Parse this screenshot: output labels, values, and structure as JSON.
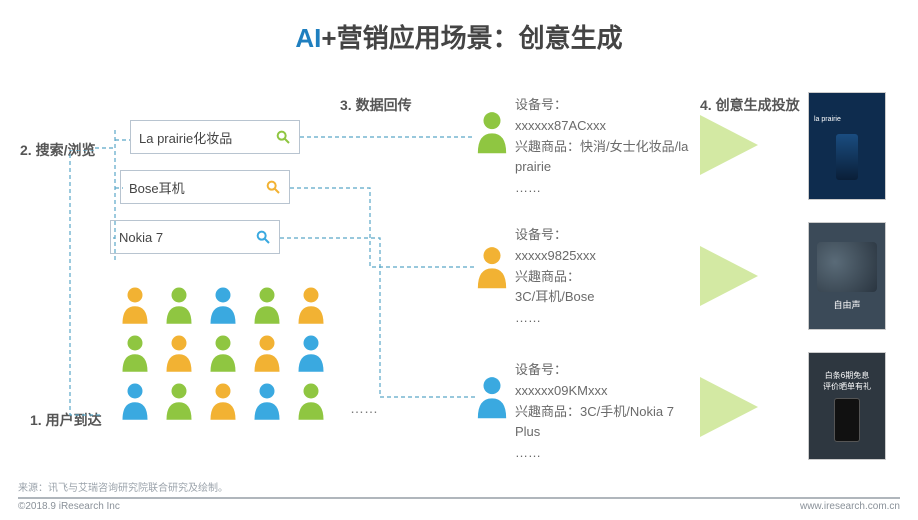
{
  "title": {
    "text": "AI+营销应用场景：创意生成",
    "color_ai": "#1f7fbf",
    "color_rest": "#444444",
    "fontsize": 26
  },
  "stages": {
    "s1": "1. 用户到达",
    "s2": "2. 搜索/浏览",
    "s3": "3. 数据回传",
    "s4": "4. 创意生成投放"
  },
  "search": {
    "items": [
      "La prairie化妆品",
      "Bose耳机",
      "Nokia 7"
    ],
    "icon_colors": [
      "#8fc641",
      "#f2b233",
      "#3aa9e0"
    ],
    "border_color": "#b8c4d0"
  },
  "people_grid": {
    "rows": 3,
    "cols": 5,
    "colors": [
      [
        "#f2b233",
        "#8fc641",
        "#3aa9e0",
        "#8fc641",
        "#f2b233"
      ],
      [
        "#8fc641",
        "#f2b233",
        "#8fc641",
        "#f2b233",
        "#3aa9e0"
      ],
      [
        "#3aa9e0",
        "#8fc641",
        "#f2b233",
        "#3aa9e0",
        "#8fc641"
      ]
    ]
  },
  "profiles": [
    {
      "person_color": "#8fc641",
      "device_label": "设备号：",
      "device": "xxxxxx87ACxxx",
      "interest_label": "兴趣商品：",
      "interest": "快消/女士化妆品/la prairie",
      "more": "……"
    },
    {
      "person_color": "#f2b233",
      "device_label": "设备号：",
      "device": "xxxxx9825xxx",
      "interest_label": "兴趣商品：",
      "interest": "3C/耳机/Bose",
      "more": "……"
    },
    {
      "person_color": "#3aa9e0",
      "device_label": "设备号：",
      "device": "xxxxxx09KMxxx",
      "interest_label": "兴趣商品：",
      "interest": "3C/手机/Nokia 7 Plus",
      "more": "……"
    }
  ],
  "arrows": {
    "color": "#d3e9a3",
    "border_left_width": 58
  },
  "ads": [
    {
      "bg": "#0e2c4e",
      "label": "la prairie"
    },
    {
      "bg": "#3b4a58",
      "label": "自由声"
    },
    {
      "bg": "#2e3740",
      "label1": "白条6期免息",
      "label2": "评价晒单有礼"
    }
  ],
  "connectors": {
    "color": "#5aa7c7",
    "dash": "4 3",
    "width": 1.2
  },
  "source": "来源：讯飞与艾瑞咨询研究院联合研究及绘制。",
  "footer": {
    "left": "©2018.9 iResearch Inc",
    "right": "www.iresearch.com.cn"
  }
}
